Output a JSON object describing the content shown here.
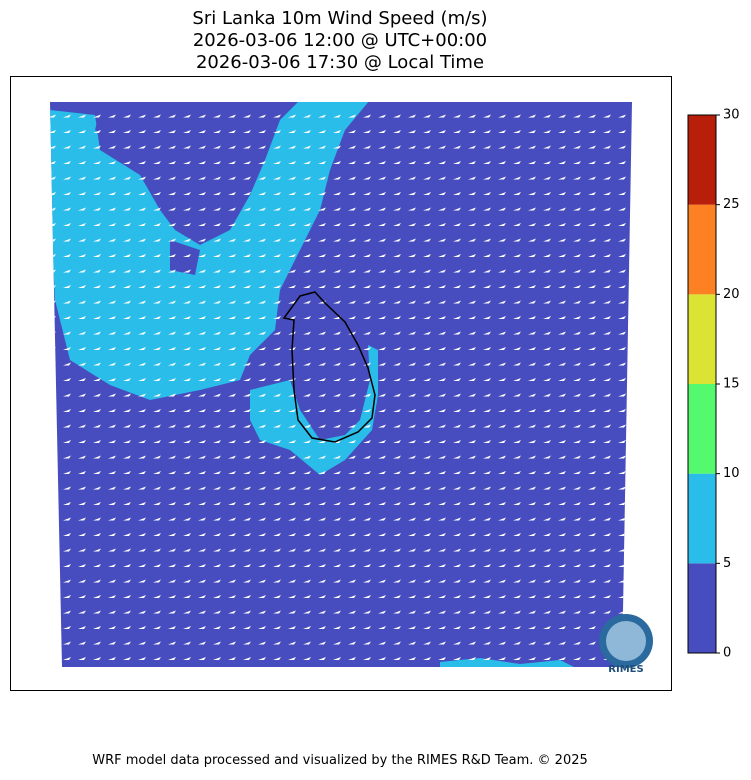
{
  "header": {
    "title_lines": [
      "Sri Lanka 10m Wind Speed (m/s)",
      "2026-03-06 12:00 @ UTC+00:00",
      "2026-03-06 17:30 @ Local Time"
    ]
  },
  "colorbar": {
    "bounds": [
      0,
      5,
      10,
      15,
      20,
      25,
      30
    ],
    "colors": [
      "#474dbe",
      "#2abde9",
      "#55f96d",
      "#dbe333",
      "#fd8022",
      "#b81f0a"
    ]
  },
  "logo": {
    "text": "RIMES"
  },
  "footer": {
    "text": "WRF model data processed and visualized by the RIMES R&D Team. © 2025"
  }
}
